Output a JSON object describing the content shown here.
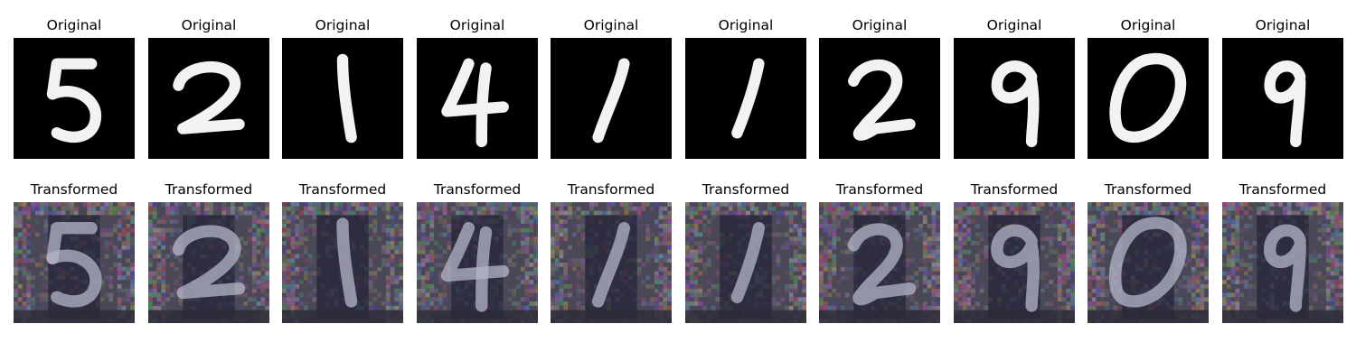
{
  "labels": {
    "original": "Original",
    "transformed": "Transformed"
  },
  "samples": [
    {
      "digit": "5"
    },
    {
      "digit": "2"
    },
    {
      "digit": "1"
    },
    {
      "digit": "4"
    },
    {
      "digit": "1"
    },
    {
      "digit": "1"
    },
    {
      "digit": "2"
    },
    {
      "digit": "9"
    },
    {
      "digit": "0"
    },
    {
      "digit": "9"
    }
  ],
  "colors": {
    "original_bg": "#000000",
    "original_ink": "#f2f2f2",
    "transformed_bg": "#4a4856",
    "transformed_ink": "#b4b6c8",
    "transformed_dark": "#16182e"
  }
}
